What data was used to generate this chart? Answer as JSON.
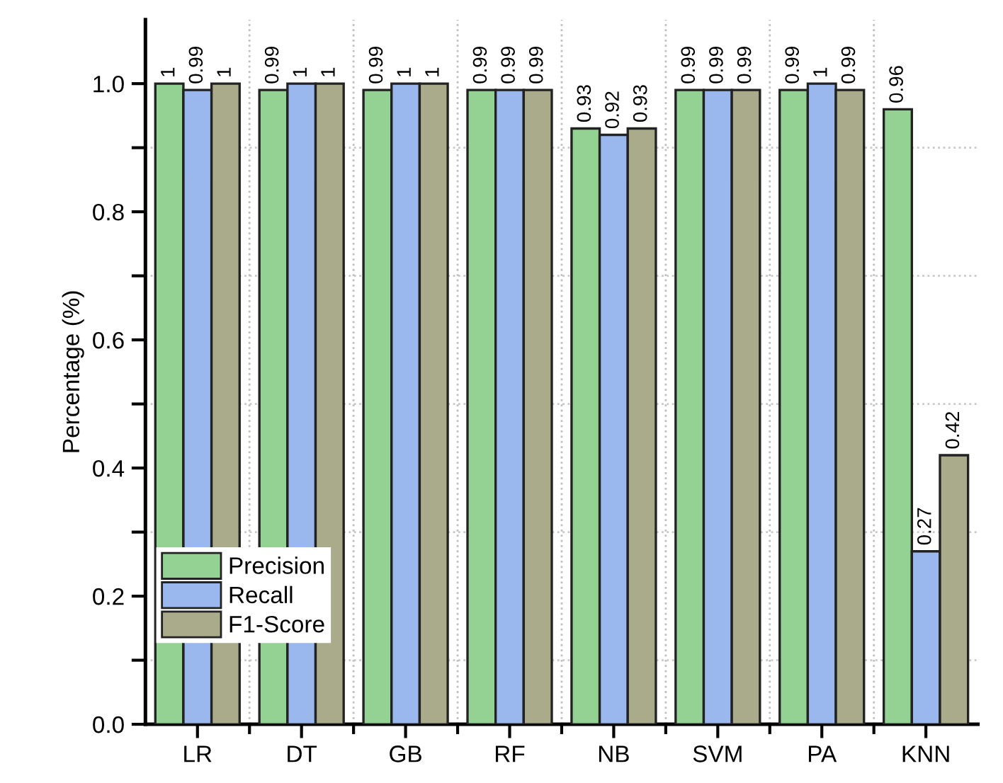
{
  "chart_data": {
    "type": "bar",
    "ylabel": "Percentage (%)",
    "categories": [
      "LR",
      "DT",
      "GB",
      "RF",
      "NB",
      "SVM",
      "PA",
      "KNN"
    ],
    "series": [
      {
        "name": "Precision",
        "color": "#94d294",
        "values": [
          1,
          0.99,
          0.99,
          0.99,
          0.93,
          0.99,
          0.99,
          0.96
        ]
      },
      {
        "name": "Recall",
        "color": "#9bb8ee",
        "values": [
          0.99,
          1,
          1,
          0.99,
          0.92,
          0.99,
          1,
          0.27
        ]
      },
      {
        "name": "F1-Score",
        "color": "#aaab8a",
        "values": [
          1,
          1,
          1,
          0.99,
          0.93,
          0.99,
          0.99,
          0.42
        ]
      }
    ],
    "ylim": [
      0,
      1.1
    ],
    "yticks": [
      {
        "value": 0,
        "label": "0.0"
      },
      {
        "value": 0.1,
        "label": null
      },
      {
        "value": 0.2,
        "label": "0.2"
      },
      {
        "value": 0.3,
        "label": null
      },
      {
        "value": 0.4,
        "label": "0.4"
      },
      {
        "value": 0.5,
        "label": null
      },
      {
        "value": 0.6,
        "label": "0.6"
      },
      {
        "value": 0.7,
        "label": null
      },
      {
        "value": 0.8,
        "label": "0.8"
      },
      {
        "value": 0.9,
        "label": null
      },
      {
        "value": 1,
        "label": "1.0"
      }
    ],
    "data_labels": true,
    "grid": true,
    "legend": "bottom left"
  }
}
